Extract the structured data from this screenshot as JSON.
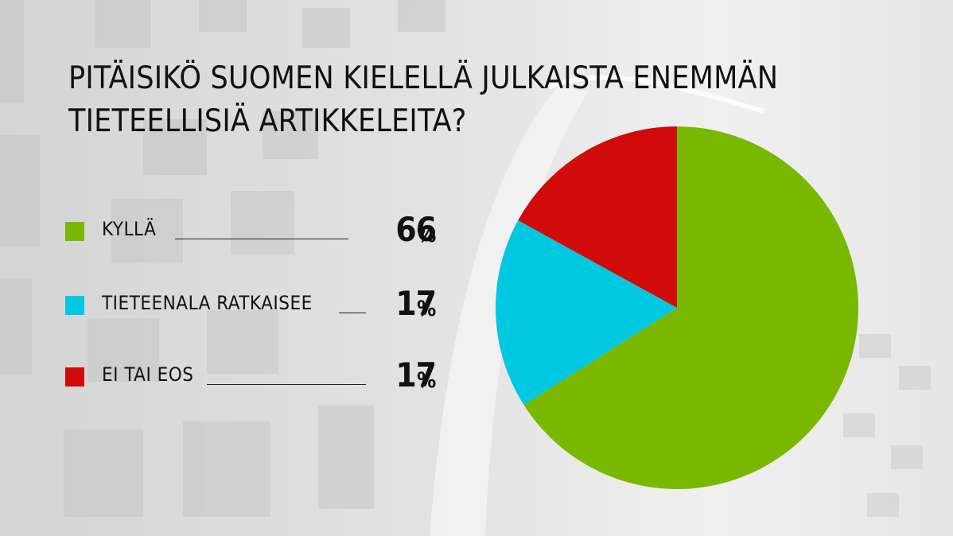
{
  "title_lines": [
    "PITÄISIKÖ SUOMEN KIELELLÄ JULKAISTA ENEMMÄN",
    "TIETEELLISIÄ ARTIKKELEITA?"
  ],
  "unit": "%",
  "colors": {
    "kylla": "#7ab800",
    "tieteenala": "#00c8e0",
    "ei_tai_eos": "#d10a0a"
  },
  "chart_data": {
    "type": "pie",
    "title": "PITÄISIKÖ SUOMEN KIELELLÄ JULKAISTA ENEMMÄN TIETEELLISIÄ ARTIKKELEITA?",
    "categories": [
      "KYLLÄ",
      "TIETEENALA RATKAISEE",
      "EI TAI EOS"
    ],
    "values": [
      66,
      17,
      17
    ],
    "colors": [
      "#7ab800",
      "#00c8e0",
      "#d10a0a"
    ],
    "value_labels": [
      "66",
      "17",
      "17"
    ],
    "legend_position": "left"
  }
}
